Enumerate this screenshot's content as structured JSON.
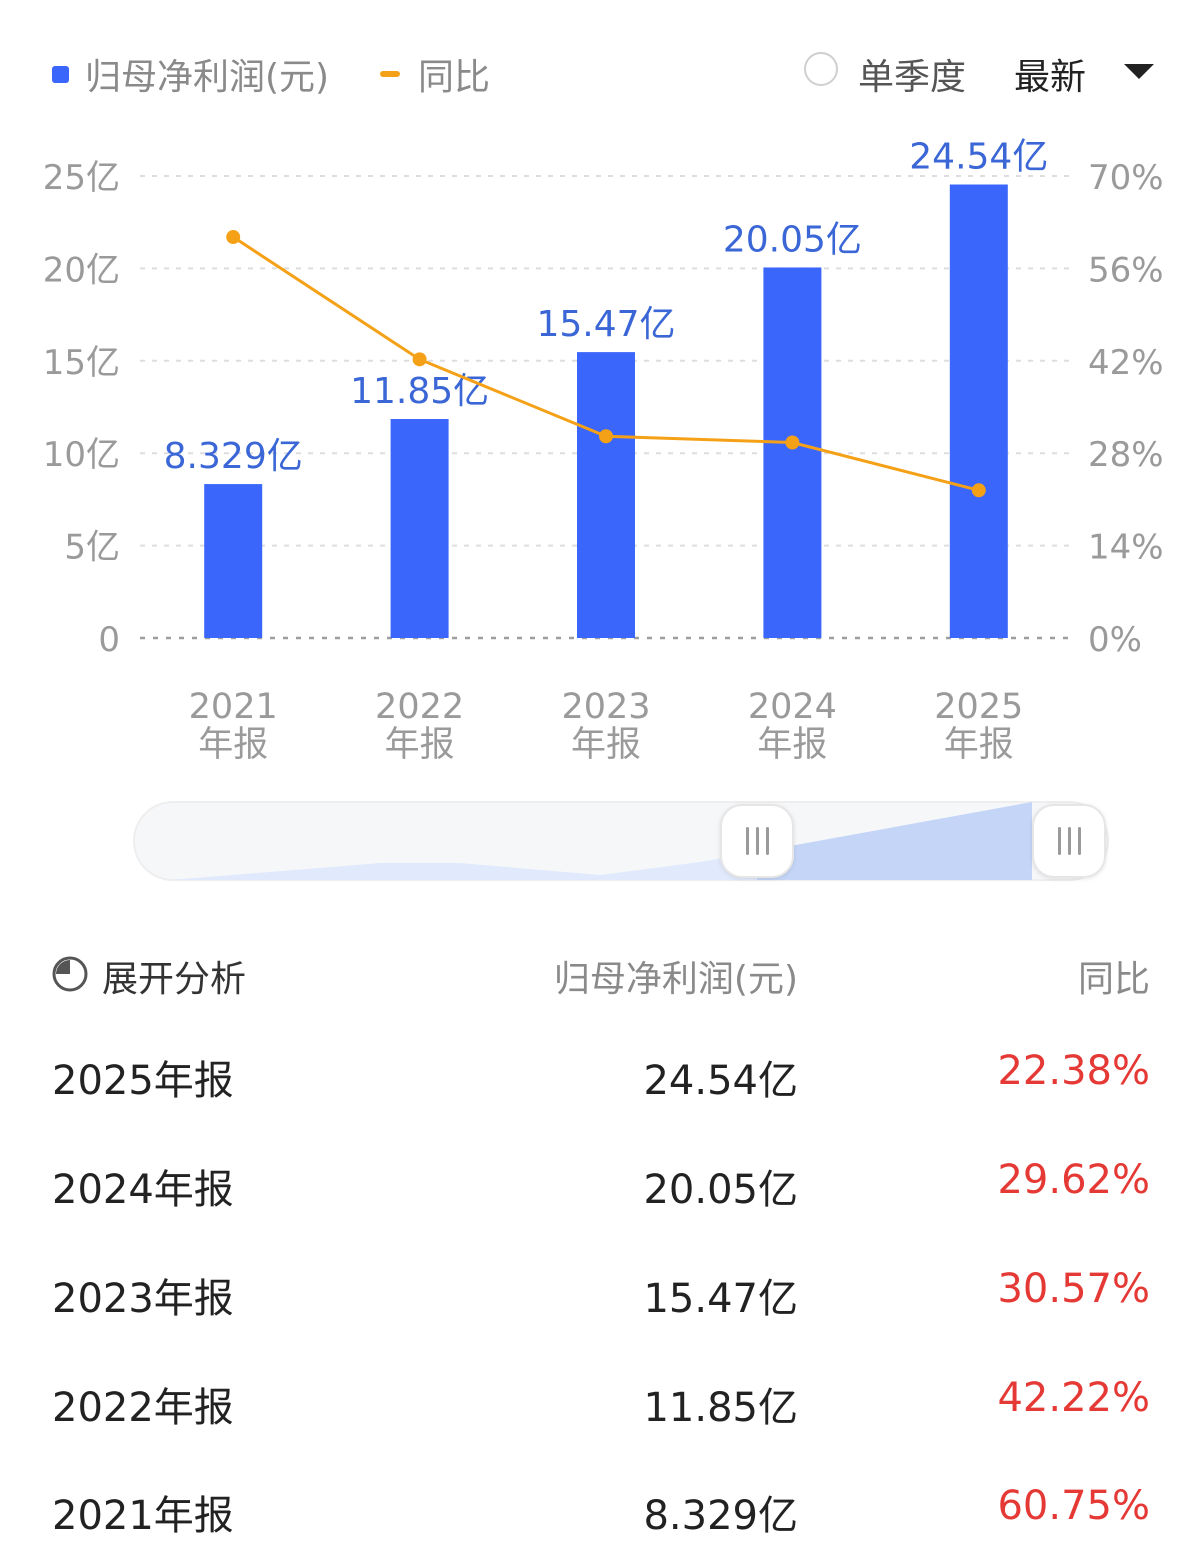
{
  "legend": {
    "net_profit_label": "归母净利润(元)",
    "yoy_label": "同比",
    "bar_color": "#3a66fb",
    "line_color": "#f5a117"
  },
  "controls": {
    "single_quarter_label": "单季度",
    "sort_label": "最新",
    "sort_icon": "caret-down-icon"
  },
  "chart_data": {
    "type": "bar",
    "categories": [
      "2021\n年报",
      "2022\n年报",
      "2023\n年报",
      "2024\n年报",
      "2025\n年报"
    ],
    "series": [
      {
        "name": "归母净利润(元)",
        "type": "bar",
        "axis": "left",
        "values": [
          8.329,
          11.85,
          15.47,
          20.05,
          24.54
        ],
        "labels": [
          "8.329亿",
          "11.85亿",
          "15.47亿",
          "20.05亿",
          "24.54亿"
        ]
      },
      {
        "name": "同比",
        "type": "line",
        "axis": "right",
        "values": [
          60.75,
          42.22,
          30.57,
          29.62,
          22.38
        ]
      }
    ],
    "y_left": {
      "min": 0,
      "max": 25,
      "ticks": [
        "0",
        "5亿",
        "10亿",
        "15亿",
        "20亿",
        "25亿"
      ]
    },
    "y_right": {
      "min": 0,
      "max": 70,
      "ticks": [
        "0%",
        "14%",
        "28%",
        "42%",
        "56%",
        "70%"
      ]
    },
    "grid": "dashed"
  },
  "table": {
    "header": {
      "analysis": "展开分析",
      "value": "归母净利润(元)",
      "yoy": "同比"
    },
    "analysis_icon": "pie-chart-icon",
    "rows": [
      {
        "period": "2025年报",
        "value": "24.54亿",
        "yoy": "22.38%"
      },
      {
        "period": "2024年报",
        "value": "20.05亿",
        "yoy": "29.62%"
      },
      {
        "period": "2023年报",
        "value": "15.47亿",
        "yoy": "30.57%"
      },
      {
        "period": "2022年报",
        "value": "11.85亿",
        "yoy": "42.22%"
      },
      {
        "period": "2021年报",
        "value": "8.329亿",
        "yoy": "60.75%"
      }
    ]
  }
}
